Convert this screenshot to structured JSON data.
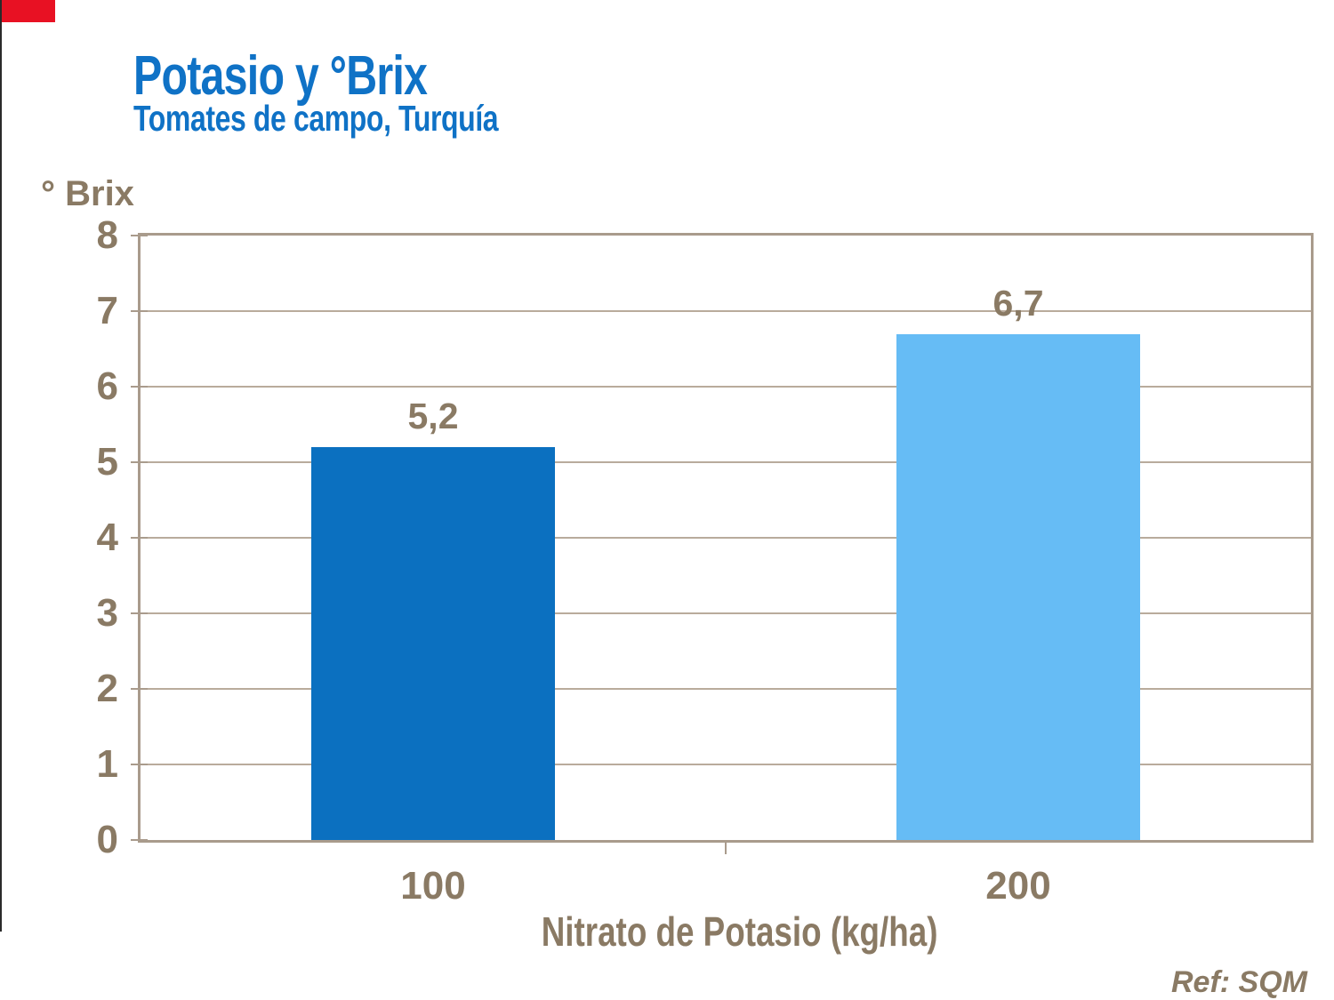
{
  "header": {
    "title": "Potasio y °Brix",
    "subtitle": "Tomates de campo, Turquía"
  },
  "chart_data": {
    "type": "bar",
    "title": "Potasio y °Brix",
    "subtitle": "Tomates de campo, Turquía",
    "categories": [
      "100",
      "200"
    ],
    "values": [
      5.2,
      6.7
    ],
    "value_labels": [
      "5,2",
      "6,7"
    ],
    "bar_colors": [
      "#0b70c0",
      "#66bcf5"
    ],
    "xlabel": "Nitrato de Potasio (kg/ha)",
    "ylabel": "° Brix",
    "ylim": [
      0,
      8
    ],
    "yticks": [
      0,
      1,
      2,
      3,
      4,
      5,
      6,
      7,
      8
    ],
    "grid": true,
    "legend": false
  },
  "footer": {
    "ref_label": "Ref: SQM"
  },
  "colors": {
    "title_blue": "#0f72c6",
    "text_taupe": "#8a7a64",
    "gridline": "#b9ab9c",
    "frame": "#a99b8c",
    "bar_dark_blue": "#0b70c0",
    "bar_light_blue": "#66bcf5",
    "corner_red": "#e81123",
    "left_edge_line": "#2a2a2a"
  }
}
